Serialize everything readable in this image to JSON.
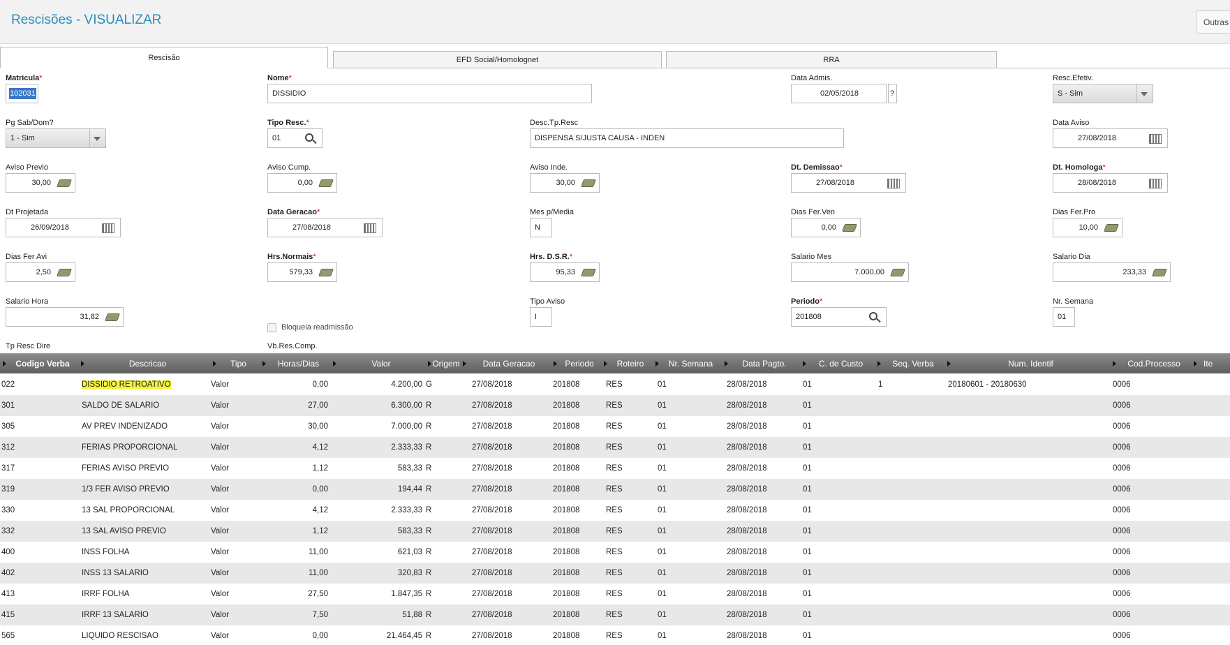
{
  "header": {
    "title": "Rescisões - VISUALIZAR",
    "button": "Outras A"
  },
  "tabs": [
    "Rescisão",
    "EFD Social/Homolognet",
    "RRA"
  ],
  "form": {
    "required_mark": "*",
    "help_button": "?",
    "fields": [
      {
        "label": "Matricula",
        "required": true,
        "value": "102031"
      },
      {
        "label": "Nome",
        "required": true,
        "value": "DISSIDIO"
      },
      {
        "label": "Data Admis.",
        "value": "02/05/2018"
      },
      {
        "label": "Resc.Efetiv.",
        "value": "S - Sim"
      },
      {
        "label": "Pg Sab/Dom?",
        "value": "1 - Sim"
      },
      {
        "label": "Tipo Resc.",
        "required": true,
        "value": "01"
      },
      {
        "label": "Desc.Tp.Resc",
        "value": "DISPENSA S/JUSTA CAUSA - INDEN"
      },
      {
        "label": "Data Aviso",
        "value": "27/08/2018"
      },
      {
        "label": "Aviso Previo",
        "value": "30,00"
      },
      {
        "label": "Aviso Cump.",
        "value": "0,00"
      },
      {
        "label": "Aviso Inde.",
        "value": "30,00"
      },
      {
        "label": "Dt. Demissao",
        "required": true,
        "value": "27/08/2018"
      },
      {
        "label": "Dt. Homologa",
        "required": true,
        "value": "28/08/2018"
      },
      {
        "label": "Dt Projetada",
        "value": "26/09/2018"
      },
      {
        "label": "Data Geracao",
        "required": true,
        "value": "27/08/2018"
      },
      {
        "label": "Mes p/Media",
        "value": "N"
      },
      {
        "label": "Dias Fer.Ven",
        "value": "0,00"
      },
      {
        "label": "Dias Fer.Pro",
        "value": "10,00"
      },
      {
        "label": "Dias Fer Avi",
        "value": "2,50"
      },
      {
        "label": "Hrs.Normais",
        "required": true,
        "value": "579,33"
      },
      {
        "label": "Hrs. D.S.R.",
        "required": true,
        "value": "95,33"
      },
      {
        "label": "Salario Mes",
        "value": "7.000,00"
      },
      {
        "label": "Salario Dia",
        "value": "233,33"
      },
      {
        "label": "Salario Hora",
        "value": "31,82"
      },
      {
        "label": "Bloqueia readmissão"
      },
      {
        "label": "Tipo Aviso",
        "value": "I"
      },
      {
        "label": "Periodo",
        "required": true,
        "value": "201808"
      },
      {
        "label": "Nr. Semana",
        "value": "01"
      },
      {
        "label": "Tp Resc Dire"
      },
      {
        "label": "Vb.Res.Comp."
      }
    ]
  },
  "grid": {
    "columns": [
      "Codigo Verba",
      "Descricao",
      "Tipo",
      "Horas/Dias",
      "Valor",
      "Origem",
      "Data Geracao",
      "Periodo",
      "Roteiro",
      "Nr. Semana",
      "Data Pagto.",
      "C. de Custo",
      "Seq. Verba",
      "Num. Identif",
      "Cod.Processo",
      "Ite"
    ],
    "rows": [
      [
        "022",
        "DISSIDIO RETROATIVO",
        "Valor",
        "0,00",
        "4.200,00",
        "G",
        "27/08/2018",
        "201808",
        "RES",
        "01",
        "28/08/2018",
        "01",
        "1",
        "20180601 - 20180630",
        "0006"
      ],
      [
        "301",
        "SALDO DE SALARIO",
        "Valor",
        "27,00",
        "6.300,00",
        "R",
        "27/08/2018",
        "201808",
        "RES",
        "01",
        "28/08/2018",
        "01",
        null,
        null,
        "0006"
      ],
      [
        "305",
        "AV PREV INDENIZADO",
        "Valor",
        "30,00",
        "7.000,00",
        "R",
        "27/08/2018",
        "201808",
        "RES",
        "01",
        "28/08/2018",
        "01",
        null,
        null,
        "0006"
      ],
      [
        "312",
        "FERIAS PROPORCIONAL",
        "Valor",
        "4,12",
        "2.333,33",
        "R",
        "27/08/2018",
        "201808",
        "RES",
        "01",
        "28/08/2018",
        "01",
        null,
        null,
        "0006"
      ],
      [
        "317",
        "FERIAS AVISO PREVIO",
        "Valor",
        "1,12",
        "583,33",
        "R",
        "27/08/2018",
        "201808",
        "RES",
        "01",
        "28/08/2018",
        "01",
        null,
        null,
        "0006"
      ],
      [
        "319",
        "1/3 FER AVISO PREVIO",
        "Valor",
        "0,00",
        "194,44",
        "R",
        "27/08/2018",
        "201808",
        "RES",
        "01",
        "28/08/2018",
        "01",
        null,
        null,
        "0006"
      ],
      [
        "330",
        "13 SAL PROPORCIONAL",
        "Valor",
        "4,12",
        "2.333,33",
        "R",
        "27/08/2018",
        "201808",
        "RES",
        "01",
        "28/08/2018",
        "01",
        null,
        null,
        "0006"
      ],
      [
        "332",
        "13 SAL AVISO PREVIO",
        "Valor",
        "1,12",
        "583,33",
        "R",
        "27/08/2018",
        "201808",
        "RES",
        "01",
        "28/08/2018",
        "01",
        null,
        null,
        "0006"
      ],
      [
        "400",
        "INSS FOLHA",
        "Valor",
        "11,00",
        "621,03",
        "R",
        "27/08/2018",
        "201808",
        "RES",
        "01",
        "28/08/2018",
        "01",
        null,
        null,
        "0006"
      ],
      [
        "402",
        "INSS 13 SALARIO",
        "Valor",
        "11,00",
        "320,83",
        "R",
        "27/08/2018",
        "201808",
        "RES",
        "01",
        "28/08/2018",
        "01",
        null,
        null,
        "0006"
      ],
      [
        "413",
        "IRRF FOLHA",
        "Valor",
        "27,50",
        "1.847,35",
        "R",
        "27/08/2018",
        "201808",
        "RES",
        "01",
        "28/08/2018",
        "01",
        null,
        null,
        "0006"
      ],
      [
        "415",
        "IRRF 13 SALARIO",
        "Valor",
        "7,50",
        "51,88",
        "R",
        "27/08/2018",
        "201808",
        "RES",
        "01",
        "28/08/2018",
        "01",
        null,
        null,
        "0006"
      ],
      [
        "565",
        "LIQUIDO RESCISAO",
        "Valor",
        "0,00",
        "21.464,45",
        "R",
        "27/08/2018",
        "201808",
        "RES",
        "01",
        "28/08/2018",
        "01",
        null,
        null,
        "0006"
      ]
    ]
  }
}
